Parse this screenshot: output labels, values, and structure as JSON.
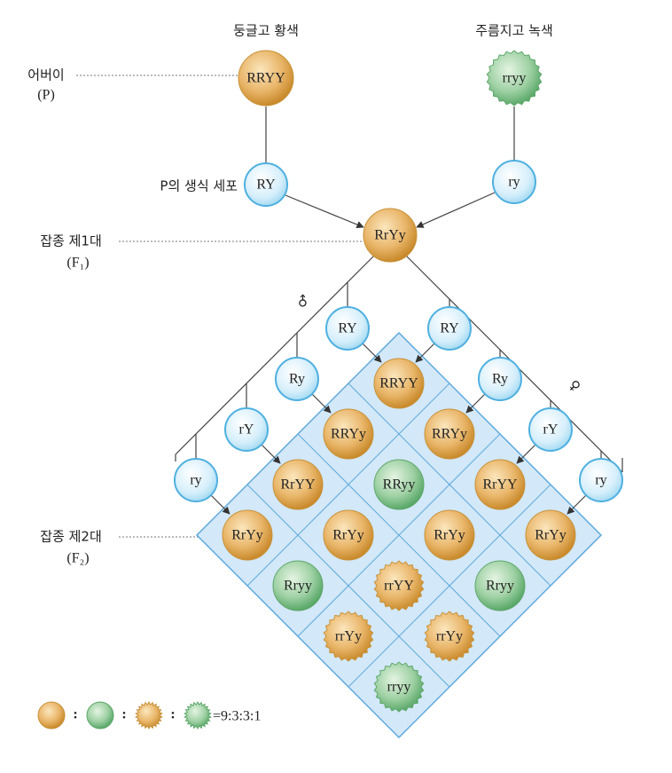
{
  "phenotypes": {
    "round_yellow": "둥글고 황색",
    "wrinkled_green": "주름지고 녹색"
  },
  "generations": {
    "parent": {
      "label": "어버이",
      "symbol": "(P)"
    },
    "f1": {
      "label": "잡종 제1대",
      "symbol": "(F₁)"
    },
    "f2": {
      "label": "잡종 제2대",
      "symbol": "(F₂)"
    }
  },
  "gamete_label": "P의 생식 세포",
  "parents": [
    "RRYY",
    "rryy"
  ],
  "parent_gametes": [
    "RY",
    "ry"
  ],
  "f1": "RrYy",
  "male_symbol": "♂",
  "female_symbol": "♀",
  "male_gametes": [
    "RY",
    "Ry",
    "rY",
    "ry"
  ],
  "female_gametes": [
    "RY",
    "Ry",
    "rY",
    "ry"
  ],
  "punnett": [
    [
      "RRYY",
      "RRYy",
      "RrYY",
      "RrYy"
    ],
    [
      "RRYy",
      "RRyy",
      "RrYy",
      "Rryy"
    ],
    [
      "RrYY",
      "RrYy",
      "rrYY",
      "rrYy"
    ],
    [
      "RrYy",
      "Rryy",
      "rrYy",
      "rryy"
    ]
  ],
  "legend": {
    "separators": [
      ":",
      ":",
      ":"
    ],
    "ratio": "=9:3:3:1"
  }
}
